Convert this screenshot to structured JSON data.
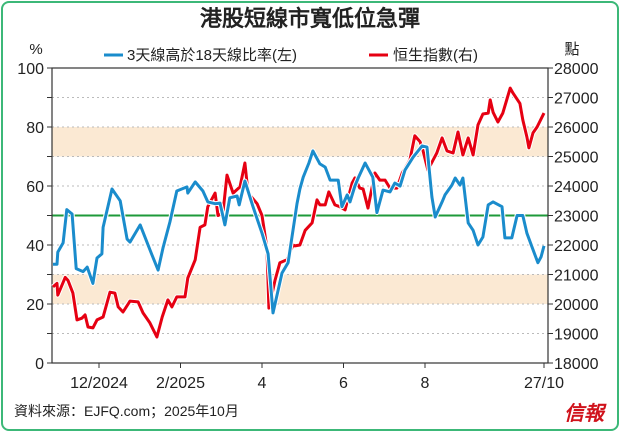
{
  "chart_data": {
    "type": "line",
    "title": "港股短線市寬低位急彈",
    "ylabel_left": "%",
    "ylabel_right": "點",
    "ylim_left": [
      0,
      100
    ],
    "ylim_right": [
      18000,
      28000
    ],
    "left_ticks": [
      "0",
      "20",
      "40",
      "60",
      "80",
      "100"
    ],
    "right_ticks": [
      "18000",
      "19000",
      "20000",
      "21000",
      "22000",
      "23000",
      "24000",
      "25000",
      "26000",
      "27000",
      "28000"
    ],
    "x_unit": "months since Jan 2024 (12 = Dec 2024)",
    "xlim": [
      10.85,
      23.0
    ],
    "x_ticks": [
      {
        "x": 12,
        "label": "12/2024"
      },
      {
        "x": 14,
        "label": "2/2025"
      },
      {
        "x": 16,
        "label": "4"
      },
      {
        "x": 18,
        "label": "6"
      },
      {
        "x": 20,
        "label": "8"
      },
      {
        "x": 22.92,
        "label": "27/10"
      }
    ],
    "reference_line": 50,
    "bands": [
      [
        20,
        30
      ],
      [
        70,
        80
      ]
    ],
    "grid": true,
    "legend_placement": "top",
    "series": [
      {
        "name": "3天線高於18天線比率(左)",
        "axis": "left",
        "color": "#1a8ccc",
        "points": [
          [
            10.87,
            33.5
          ],
          [
            10.97,
            33.5
          ],
          [
            10.99,
            37.6
          ],
          [
            11.12,
            40.7
          ],
          [
            11.21,
            52
          ],
          [
            11.34,
            50.5
          ],
          [
            11.44,
            32
          ],
          [
            11.61,
            31
          ],
          [
            11.71,
            32.5
          ],
          [
            11.85,
            27
          ],
          [
            11.95,
            35.6
          ],
          [
            12.07,
            37
          ],
          [
            12.1,
            46
          ],
          [
            12.32,
            59
          ],
          [
            12.52,
            55
          ],
          [
            12.69,
            42
          ],
          [
            12.76,
            41
          ],
          [
            13.01,
            46.8
          ],
          [
            13.3,
            36.6
          ],
          [
            13.45,
            31.5
          ],
          [
            13.57,
            39
          ],
          [
            13.74,
            47.8
          ],
          [
            13.91,
            58.3
          ],
          [
            14.16,
            59.7
          ],
          [
            14.18,
            57.6
          ],
          [
            14.36,
            61.4
          ],
          [
            14.55,
            58.3
          ],
          [
            14.67,
            54.6
          ],
          [
            14.85,
            54
          ],
          [
            14.97,
            54.2
          ],
          [
            15.09,
            46.8
          ],
          [
            15.21,
            56
          ],
          [
            15.39,
            56.6
          ],
          [
            15.44,
            53.6
          ],
          [
            15.58,
            61.7
          ],
          [
            15.78,
            53
          ],
          [
            16.0,
            44
          ],
          [
            16.15,
            37
          ],
          [
            16.27,
            17
          ],
          [
            16.49,
            30.5
          ],
          [
            16.64,
            34
          ],
          [
            16.86,
            54
          ],
          [
            16.93,
            59
          ],
          [
            17.01,
            63
          ],
          [
            17.15,
            67.8
          ],
          [
            17.25,
            71.9
          ],
          [
            17.42,
            67.5
          ],
          [
            17.55,
            66.4
          ],
          [
            17.67,
            62
          ],
          [
            17.87,
            62
          ],
          [
            17.96,
            53
          ],
          [
            18.09,
            57
          ],
          [
            18.16,
            54.6
          ],
          [
            18.28,
            60
          ],
          [
            18.36,
            62.7
          ],
          [
            18.53,
            67.8
          ],
          [
            18.6,
            66
          ],
          [
            18.72,
            63
          ],
          [
            18.82,
            51
          ],
          [
            18.97,
            58.6
          ],
          [
            19.14,
            58
          ],
          [
            19.26,
            61
          ],
          [
            19.39,
            60
          ],
          [
            19.51,
            65.4
          ],
          [
            19.71,
            69.8
          ],
          [
            19.93,
            73.6
          ],
          [
            20.05,
            73.2
          ],
          [
            20.17,
            56.3
          ],
          [
            20.25,
            49.5
          ],
          [
            20.42,
            54.6
          ],
          [
            20.49,
            57
          ],
          [
            20.66,
            60.3
          ],
          [
            20.74,
            62.7
          ],
          [
            20.86,
            60.3
          ],
          [
            20.93,
            62.7
          ],
          [
            21.06,
            47.5
          ],
          [
            21.18,
            45
          ],
          [
            21.3,
            40
          ],
          [
            21.42,
            42.7
          ],
          [
            21.55,
            53.6
          ],
          [
            21.67,
            54.6
          ],
          [
            21.89,
            53
          ],
          [
            21.96,
            42.4
          ],
          [
            22.13,
            42.4
          ],
          [
            22.26,
            50
          ],
          [
            22.4,
            50
          ],
          [
            22.5,
            44
          ],
          [
            22.7,
            36.6
          ],
          [
            22.77,
            34
          ],
          [
            22.85,
            36
          ],
          [
            22.92,
            39.7
          ]
        ]
      },
      {
        "name": "恒生指數(右)",
        "axis": "right",
        "color": "#e60012",
        "points": [
          [
            10.87,
            20580
          ],
          [
            10.97,
            20700
          ],
          [
            10.99,
            20300
          ],
          [
            11.17,
            20900
          ],
          [
            11.24,
            20800
          ],
          [
            11.36,
            20370
          ],
          [
            11.46,
            19460
          ],
          [
            11.58,
            19520
          ],
          [
            11.66,
            19630
          ],
          [
            11.73,
            19220
          ],
          [
            11.85,
            19190
          ],
          [
            11.95,
            19460
          ],
          [
            12.1,
            19560
          ],
          [
            12.27,
            20400
          ],
          [
            12.39,
            20370
          ],
          [
            12.47,
            19900
          ],
          [
            12.59,
            19730
          ],
          [
            12.76,
            20100
          ],
          [
            12.96,
            20070
          ],
          [
            13.08,
            19700
          ],
          [
            13.25,
            19360
          ],
          [
            13.42,
            18880
          ],
          [
            13.55,
            19560
          ],
          [
            13.69,
            20140
          ],
          [
            13.79,
            19900
          ],
          [
            13.91,
            20240
          ],
          [
            14.11,
            20240
          ],
          [
            14.18,
            20880
          ],
          [
            14.36,
            21500
          ],
          [
            14.48,
            22600
          ],
          [
            14.6,
            22680
          ],
          [
            14.67,
            23300
          ],
          [
            14.85,
            23760
          ],
          [
            14.92,
            23000
          ],
          [
            15.04,
            23080
          ],
          [
            15.14,
            24370
          ],
          [
            15.29,
            23760
          ],
          [
            15.46,
            23970
          ],
          [
            15.58,
            24780
          ],
          [
            15.66,
            23760
          ],
          [
            15.88,
            23400
          ],
          [
            16.0,
            23000
          ],
          [
            16.12,
            21900
          ],
          [
            16.17,
            19860
          ],
          [
            16.32,
            20800
          ],
          [
            16.44,
            21400
          ],
          [
            16.61,
            21500
          ],
          [
            16.76,
            22000
          ],
          [
            16.81,
            21970
          ],
          [
            16.93,
            22000
          ],
          [
            17.06,
            22500
          ],
          [
            17.23,
            22750
          ],
          [
            17.35,
            23530
          ],
          [
            17.42,
            23360
          ],
          [
            17.55,
            23360
          ],
          [
            17.64,
            23800
          ],
          [
            17.79,
            23360
          ],
          [
            17.91,
            23300
          ],
          [
            18.04,
            23190
          ],
          [
            18.21,
            24100
          ],
          [
            18.28,
            24270
          ],
          [
            18.4,
            23930
          ],
          [
            18.48,
            23900
          ],
          [
            18.6,
            23250
          ],
          [
            18.77,
            24440
          ],
          [
            18.89,
            24200
          ],
          [
            19.02,
            24200
          ],
          [
            19.14,
            23930
          ],
          [
            19.31,
            23930
          ],
          [
            19.44,
            24440
          ],
          [
            19.63,
            24880
          ],
          [
            19.75,
            25700
          ],
          [
            19.88,
            25500
          ],
          [
            19.95,
            25200
          ],
          [
            20.07,
            24540
          ],
          [
            20.2,
            24880
          ],
          [
            20.29,
            25120
          ],
          [
            20.42,
            25630
          ],
          [
            20.54,
            25190
          ],
          [
            20.69,
            25120
          ],
          [
            20.81,
            25830
          ],
          [
            20.93,
            25050
          ],
          [
            21.06,
            25630
          ],
          [
            21.18,
            25050
          ],
          [
            21.3,
            26070
          ],
          [
            21.42,
            26440
          ],
          [
            21.55,
            26470
          ],
          [
            21.6,
            26920
          ],
          [
            21.67,
            26500
          ],
          [
            21.79,
            26170
          ],
          [
            21.91,
            26470
          ],
          [
            22.09,
            27320
          ],
          [
            22.16,
            27150
          ],
          [
            22.33,
            26800
          ],
          [
            22.4,
            26240
          ],
          [
            22.5,
            25660
          ],
          [
            22.55,
            25290
          ],
          [
            22.65,
            25800
          ],
          [
            22.75,
            26000
          ],
          [
            22.92,
            26470
          ]
        ]
      }
    ]
  },
  "footer": {
    "source": "資料來源：EJFQ.com；2025年10月",
    "logo": "信報"
  }
}
